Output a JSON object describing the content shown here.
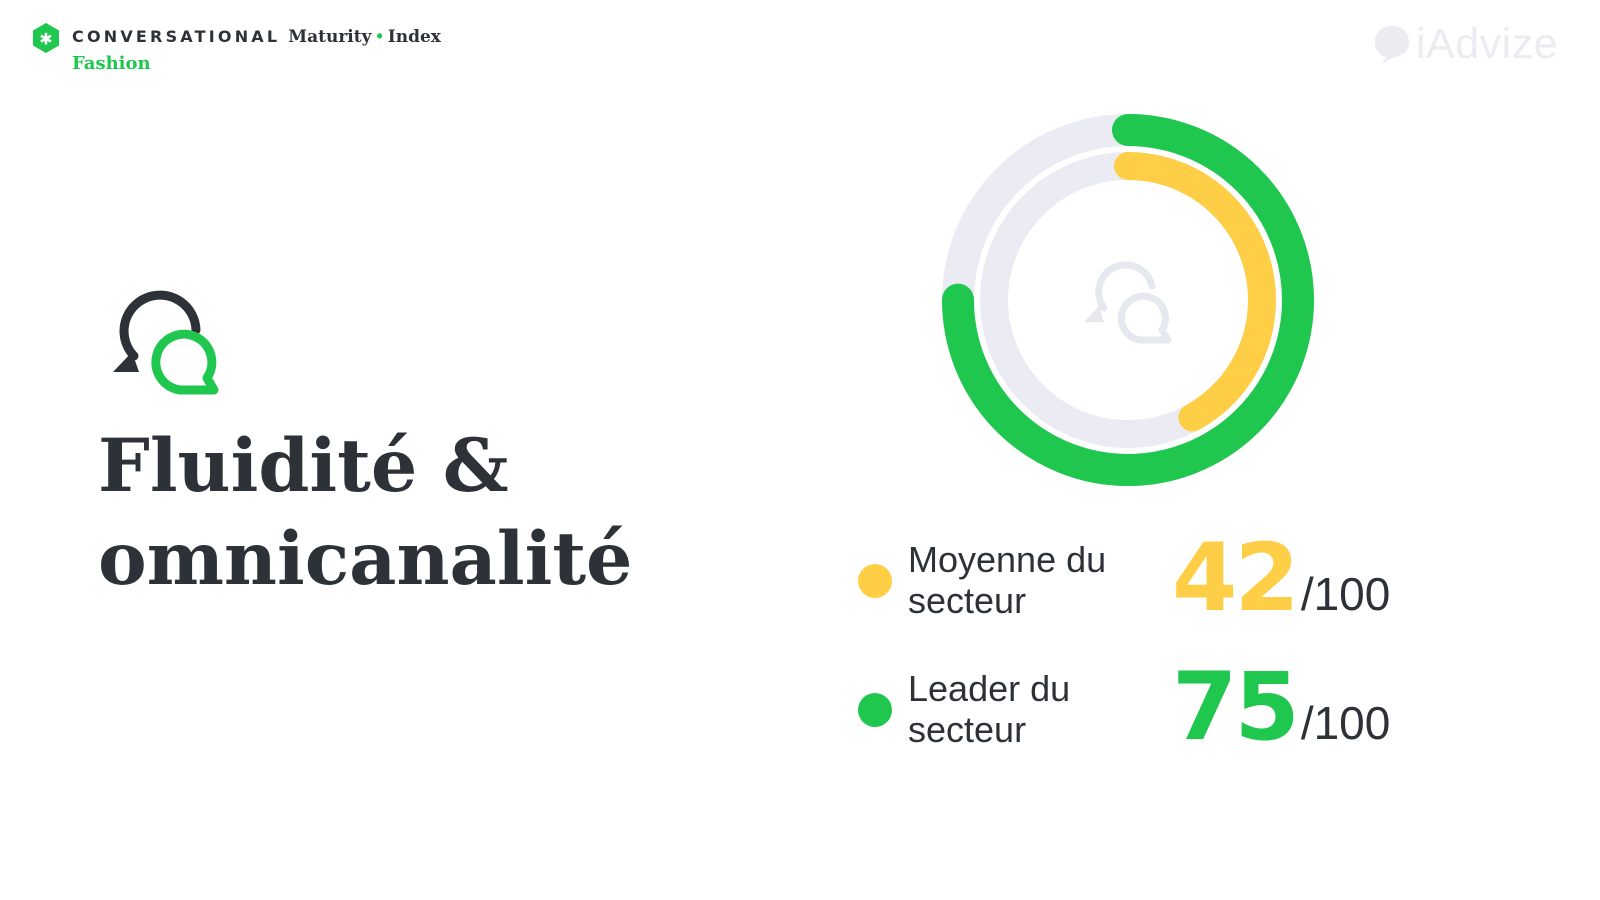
{
  "header": {
    "brand_conversational": "CONVERSATIONAL",
    "brand_maturity": "Maturity",
    "brand_separator": "•",
    "brand_index": "Index",
    "sector": "Fashion"
  },
  "logo": {
    "text": "iAdvize",
    "color": "#ebecf1"
  },
  "page": {
    "title_line1": "Fluidité &",
    "title_line2": "omnicanalité"
  },
  "colors": {
    "green": "#1fc74f",
    "yellow": "#fecf46",
    "track": "#ebecf3",
    "text": "#2d3138"
  },
  "icons": {
    "topic": "chat-refresh-icon",
    "brand": "star-badge-icon",
    "center": "chat-refresh-icon"
  },
  "chart_data": {
    "type": "pie",
    "variant": "concentric-donut",
    "max": 100,
    "series": [
      {
        "name": "Leader du secteur",
        "value": 75,
        "color": "#1fc74f",
        "ring": "outer"
      },
      {
        "name": "Moyenne du secteur",
        "value": 42,
        "color": "#fecf46",
        "ring": "inner"
      }
    ]
  },
  "legend": [
    {
      "label": "Moyenne du secteur",
      "value": "42",
      "max": "/100",
      "color": "#fecf46"
    },
    {
      "label": "Leader du secteur",
      "value": "75",
      "max": "/100",
      "color": "#1fc74f"
    }
  ]
}
